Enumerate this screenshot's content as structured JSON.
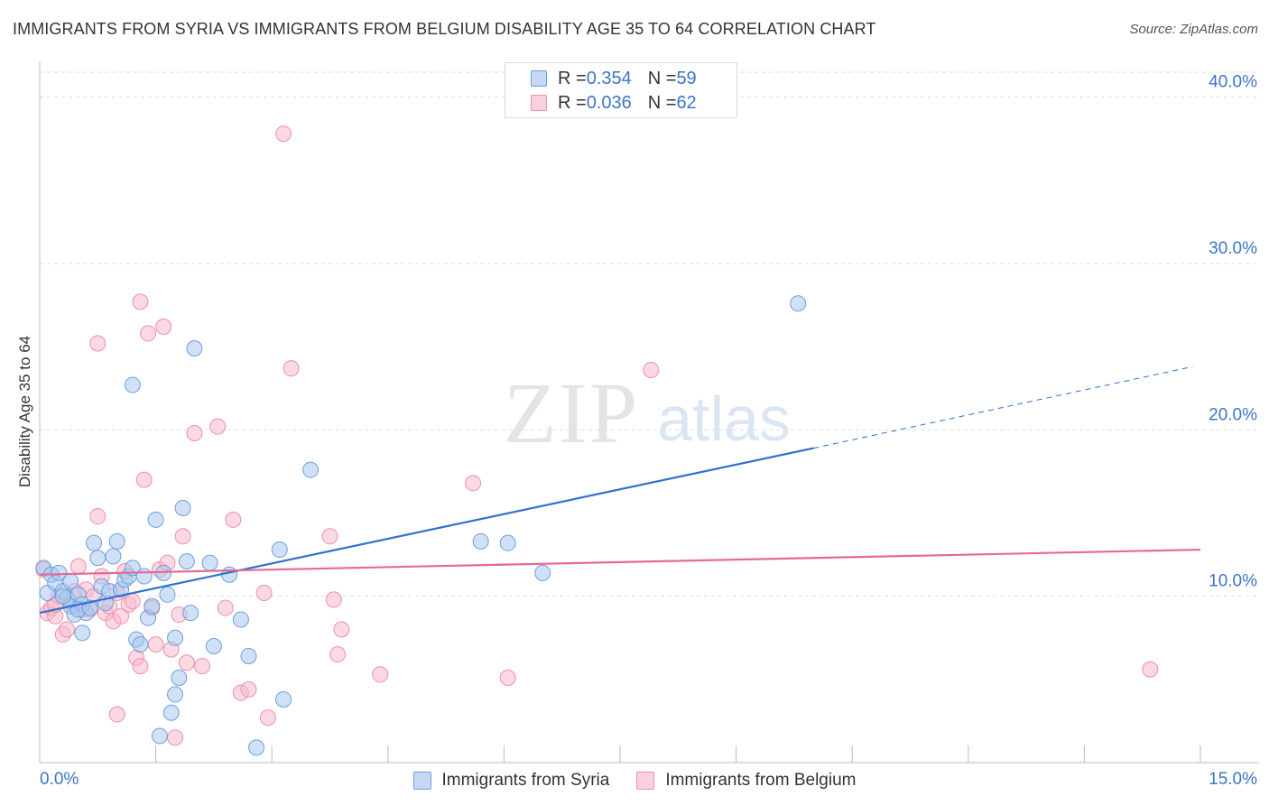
{
  "title": "IMMIGRANTS FROM SYRIA VS IMMIGRANTS FROM BELGIUM DISABILITY AGE 35 TO 64 CORRELATION CHART",
  "source": "Source: ZipAtlas.com",
  "watermark": {
    "zip": "ZIP",
    "atlas": "atlas"
  },
  "legend": {
    "rows": [
      {
        "r_label": "R = ",
        "r_value": "0.354",
        "n_label": "N = ",
        "n_value": "59"
      },
      {
        "r_label": "R = ",
        "r_value": "0.036",
        "n_label": "N = ",
        "n_value": "62"
      }
    ]
  },
  "colors": {
    "syria_fill": "#aac8f0",
    "syria_stroke": "#6f9fdc",
    "syria_line": "#2f72d0",
    "belgium_fill": "#f7b9cc",
    "belgium_stroke": "#ee8fae",
    "belgium_line": "#e46a92",
    "tick_label": "#3d74c8",
    "grid": "#dddddd"
  },
  "chart_data": {
    "type": "scatter",
    "title": "IMMIGRANTS FROM SYRIA VS IMMIGRANTS FROM BELGIUM DISABILITY AGE 35 TO 64 CORRELATION CHART",
    "xlabel": "",
    "ylabel": "Disability Age 35 to 64",
    "xlim": [
      0,
      15
    ],
    "ylim": [
      0,
      41.5
    ],
    "x_tick_labels": [
      {
        "value": 0,
        "label": "0.0%"
      },
      {
        "value": 15,
        "label": "15.0%"
      }
    ],
    "y_ticks": [
      {
        "value": 10,
        "label": "10.0%"
      },
      {
        "value": 20,
        "label": "20.0%"
      },
      {
        "value": 30,
        "label": "30.0%"
      },
      {
        "value": 40,
        "label": "40.0%"
      }
    ],
    "x_minor_ticks": [
      1.5,
      3,
      4.5,
      6,
      7.5,
      9,
      10.5,
      12,
      13.5,
      15
    ],
    "series": [
      {
        "name": "Immigrants from Syria",
        "r": 0.354,
        "n": 59,
        "trend": {
          "x0": 0.0,
          "y0": 9.0,
          "x1": 10.0,
          "y1": 18.9,
          "x_dash_end": 14.9,
          "y_dash_end": 23.8
        },
        "points": [
          [
            0.05,
            11.7
          ],
          [
            0.1,
            10.2
          ],
          [
            0.15,
            11.3
          ],
          [
            0.2,
            10.8
          ],
          [
            0.25,
            11.4
          ],
          [
            0.3,
            10.3
          ],
          [
            0.35,
            9.9
          ],
          [
            0.4,
            9.4
          ],
          [
            0.45,
            8.9
          ],
          [
            0.5,
            10.1
          ],
          [
            0.55,
            9.5
          ],
          [
            0.6,
            9.0
          ],
          [
            0.5,
            9.2
          ],
          [
            0.4,
            10.9
          ],
          [
            0.65,
            9.3
          ],
          [
            0.7,
            13.2
          ],
          [
            0.75,
            12.3
          ],
          [
            0.8,
            10.6
          ],
          [
            0.85,
            9.6
          ],
          [
            0.9,
            10.3
          ],
          [
            0.95,
            12.4
          ],
          [
            1.0,
            13.3
          ],
          [
            1.05,
            10.4
          ],
          [
            1.1,
            11.0
          ],
          [
            1.15,
            11.2
          ],
          [
            1.2,
            11.7
          ],
          [
            1.25,
            7.4
          ],
          [
            1.3,
            7.1
          ],
          [
            1.35,
            11.2
          ],
          [
            1.4,
            8.7
          ],
          [
            1.45,
            9.4
          ],
          [
            1.5,
            14.6
          ],
          [
            1.55,
            1.6
          ],
          [
            1.6,
            11.4
          ],
          [
            1.65,
            10.1
          ],
          [
            1.7,
            3.0
          ],
          [
            1.75,
            7.5
          ],
          [
            1.8,
            5.1
          ],
          [
            1.85,
            15.3
          ],
          [
            1.9,
            12.1
          ],
          [
            1.95,
            9.0
          ],
          [
            2.0,
            24.9
          ],
          [
            2.2,
            12.0
          ],
          [
            2.25,
            7.0
          ],
          [
            2.45,
            11.3
          ],
          [
            2.6,
            8.6
          ],
          [
            2.7,
            6.4
          ],
          [
            2.8,
            0.9
          ],
          [
            3.1,
            12.8
          ],
          [
            3.15,
            3.8
          ],
          [
            3.5,
            17.6
          ],
          [
            1.2,
            22.7
          ],
          [
            1.75,
            4.1
          ],
          [
            0.55,
            7.8
          ],
          [
            5.7,
            13.3
          ],
          [
            6.05,
            13.2
          ],
          [
            6.5,
            11.4
          ],
          [
            9.8,
            27.6
          ],
          [
            0.3,
            10.0
          ]
        ]
      },
      {
        "name": "Immigrants from Belgium",
        "r": 0.036,
        "n": 62,
        "trend": {
          "x0": 0.0,
          "y0": 11.3,
          "x1": 15.0,
          "y1": 12.8
        },
        "points": [
          [
            0.05,
            11.6
          ],
          [
            0.1,
            9.0
          ],
          [
            0.15,
            9.3
          ],
          [
            0.2,
            8.8
          ],
          [
            0.25,
            10.0
          ],
          [
            0.3,
            7.7
          ],
          [
            0.35,
            8.0
          ],
          [
            0.4,
            9.6
          ],
          [
            0.45,
            10.3
          ],
          [
            0.5,
            11.8
          ],
          [
            0.55,
            9.2
          ],
          [
            0.6,
            10.4
          ],
          [
            0.65,
            9.2
          ],
          [
            0.7,
            10.0
          ],
          [
            0.75,
            14.8
          ],
          [
            0.8,
            11.2
          ],
          [
            0.85,
            9.0
          ],
          [
            0.9,
            9.4
          ],
          [
            0.95,
            8.5
          ],
          [
            1.0,
            10.2
          ],
          [
            1.05,
            8.8
          ],
          [
            1.1,
            11.5
          ],
          [
            1.15,
            9.5
          ],
          [
            1.2,
            9.7
          ],
          [
            1.25,
            6.3
          ],
          [
            1.3,
            27.7
          ],
          [
            1.35,
            17.0
          ],
          [
            1.4,
            25.8
          ],
          [
            1.45,
            9.3
          ],
          [
            1.5,
            7.1
          ],
          [
            1.55,
            11.6
          ],
          [
            1.6,
            26.2
          ],
          [
            1.65,
            12.0
          ],
          [
            1.7,
            6.8
          ],
          [
            1.75,
            1.5
          ],
          [
            1.8,
            8.9
          ],
          [
            1.85,
            13.6
          ],
          [
            1.9,
            6.0
          ],
          [
            2.0,
            19.8
          ],
          [
            2.1,
            5.8
          ],
          [
            2.3,
            20.2
          ],
          [
            2.4,
            9.3
          ],
          [
            2.5,
            14.6
          ],
          [
            2.6,
            4.2
          ],
          [
            2.7,
            4.4
          ],
          [
            2.9,
            10.2
          ],
          [
            2.95,
            2.7
          ],
          [
            3.15,
            37.8
          ],
          [
            3.25,
            23.7
          ],
          [
            3.75,
            13.6
          ],
          [
            3.8,
            9.8
          ],
          [
            3.85,
            6.5
          ],
          [
            3.9,
            8.0
          ],
          [
            4.4,
            5.3
          ],
          [
            5.6,
            16.8
          ],
          [
            6.05,
            5.1
          ],
          [
            7.9,
            23.6
          ],
          [
            1.0,
            2.9
          ],
          [
            1.3,
            5.8
          ],
          [
            14.35,
            5.6
          ],
          [
            0.2,
            9.5
          ],
          [
            0.75,
            25.2
          ]
        ]
      }
    ]
  },
  "bottom_legend": [
    {
      "label": "Immigrants from Syria"
    },
    {
      "label": "Immigrants from Belgium"
    }
  ]
}
